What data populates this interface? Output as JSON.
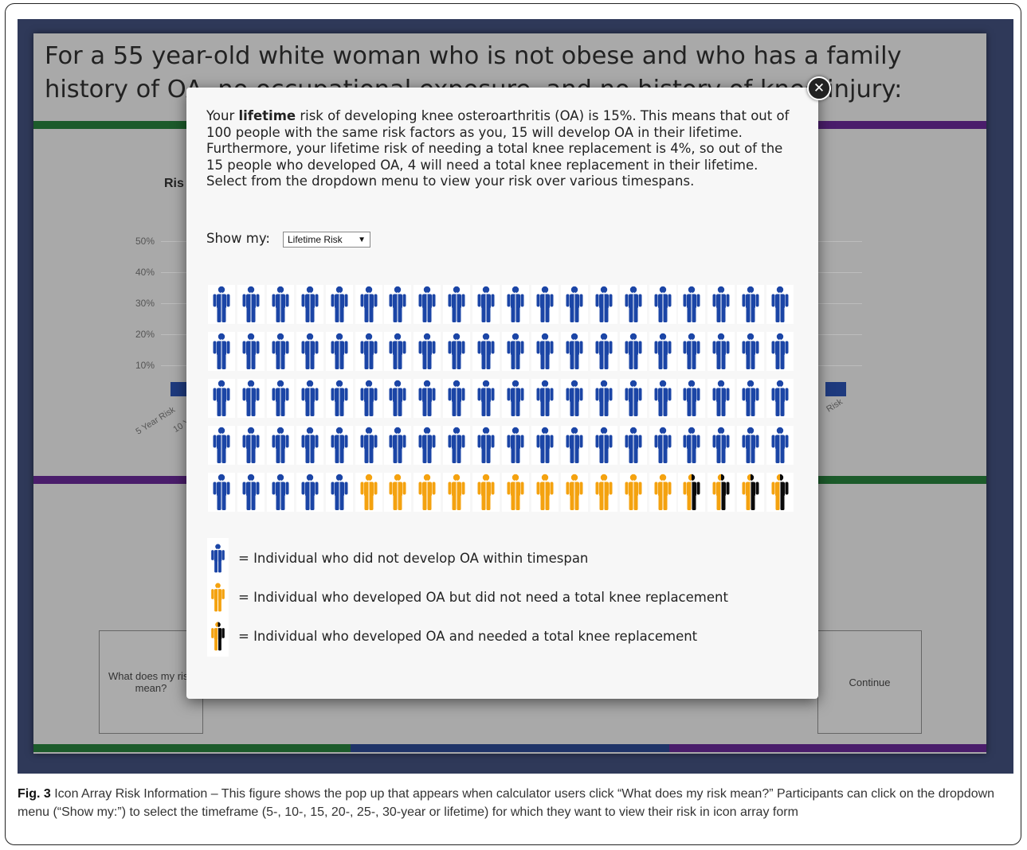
{
  "app": {
    "heading": "For a 55 year-old white woman who is not obese and who has a family\nhistory of OA, no occupational exposure, and no history of knee injury:",
    "chart_title_fragment": "Ris",
    "y_ticks": [
      "50%",
      "40%",
      "30%",
      "20%",
      "10%"
    ],
    "x_ticks": [
      "5 Year Risk",
      "10 Y",
      "Risk"
    ],
    "buttons": {
      "risk_meaning_label": "What does my risk mean?",
      "continue_label": "Continue"
    },
    "colors": {
      "green": "#1c5b2b",
      "purple": "#4a1d6b",
      "navy": "#1f3468"
    }
  },
  "modal": {
    "intro_before": "Your ",
    "intro_bold": "lifetime",
    "intro_after": " risk of developing knee osteroarthritis (OA) is 15%. This means that out of 100 people with the same risk factors as you, 15 will develop OA in their lifetime. Furthermore, your lifetime risk of needing a total knee replacement is 4%, so out of the 15 people who developed OA, 4 will need a total knee replacement in their lifetime. Select from the dropdown menu to view your risk over various timespans.",
    "show_my_label": "Show my:",
    "dropdown_value": "Lifetime Risk",
    "close_icon": "close-icon",
    "icon_array": {
      "total": 100,
      "columns": 20,
      "no_oa": 85,
      "oa_no_replacement": 11,
      "oa_and_replacement": 4,
      "colors": {
        "no_oa": "#1b45a6",
        "oa": "#f4a20f",
        "replacement": "#0a0a0a"
      }
    },
    "legend": [
      {
        "icon": "person-blue-icon",
        "text": "= Individual who did not develop OA within timespan"
      },
      {
        "icon": "person-orange-icon",
        "text": "= Individual who developed OA but did not need a total knee replacement"
      },
      {
        "icon": "person-orange-black-icon",
        "text": "= Individual who developed OA and needed a total knee replacement"
      }
    ]
  },
  "caption": {
    "label": "Fig. 3",
    "text": " Icon Array Risk Information – This figure shows the pop up that appears when calculator users click “What does my risk mean?” Participants can click on the dropdown menu (“Show my:”) to select the timeframe (5-, 10-, 15, 20-, 25-, 30-year or lifetime) for which they want to view their risk in icon array form"
  }
}
